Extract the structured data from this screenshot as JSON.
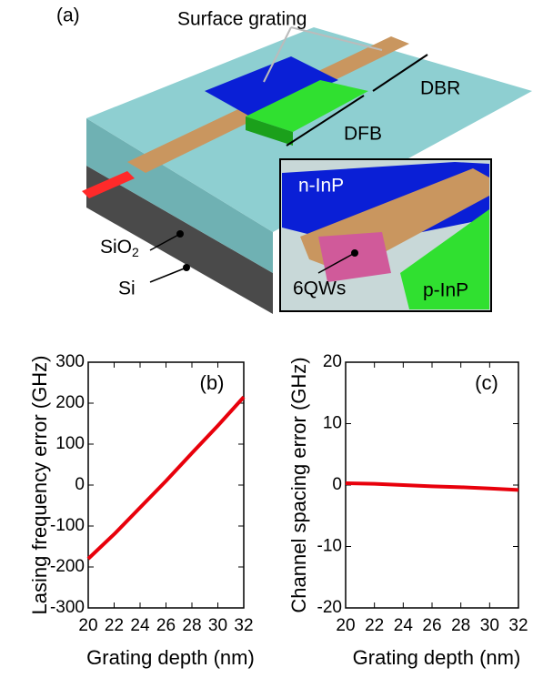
{
  "diagram": {
    "panel": "(a)",
    "surface_grating": "Surface grating",
    "dbr": "DBR",
    "dfb": "DFB",
    "sio2": {
      "text": "SiO",
      "subscript": "2"
    },
    "si": "Si",
    "n_inp": "n-InP",
    "qws": "6QWs",
    "p_inp": "p-InP"
  },
  "chart_data": [
    {
      "type": "line",
      "annotation": "(b)",
      "x_label": "Grating depth (nm)",
      "y_label": "Lasing frequency error (GHz)",
      "x": [
        20,
        22,
        24,
        26,
        28,
        30,
        32
      ],
      "series": [
        {
          "color": "#e8000b",
          "values": [
            -180,
            -120,
            -55,
            10,
            78,
            145,
            215
          ]
        }
      ],
      "xlim": [
        20,
        32
      ],
      "xticks": [
        20,
        22,
        24,
        26,
        28,
        30,
        32
      ],
      "ylim": [
        -300,
        300
      ],
      "yticks": [
        -300,
        -200,
        -100,
        0,
        100,
        200,
        300
      ]
    },
    {
      "type": "line",
      "annotation": "(c)",
      "x_label": "Grating depth (nm)",
      "y_label": "Channel spacing error (GHz)",
      "x": [
        20,
        22,
        24,
        26,
        28,
        30,
        32
      ],
      "series": [
        {
          "color": "#e8000b",
          "values": [
            0.3,
            0.2,
            0.0,
            -0.2,
            -0.35,
            -0.55,
            -0.8
          ]
        }
      ],
      "xlim": [
        20,
        32
      ],
      "xticks": [
        20,
        22,
        24,
        26,
        28,
        30,
        32
      ],
      "ylim": [
        -20,
        20
      ],
      "yticks": [
        -20,
        -10,
        0,
        10,
        20
      ]
    }
  ]
}
